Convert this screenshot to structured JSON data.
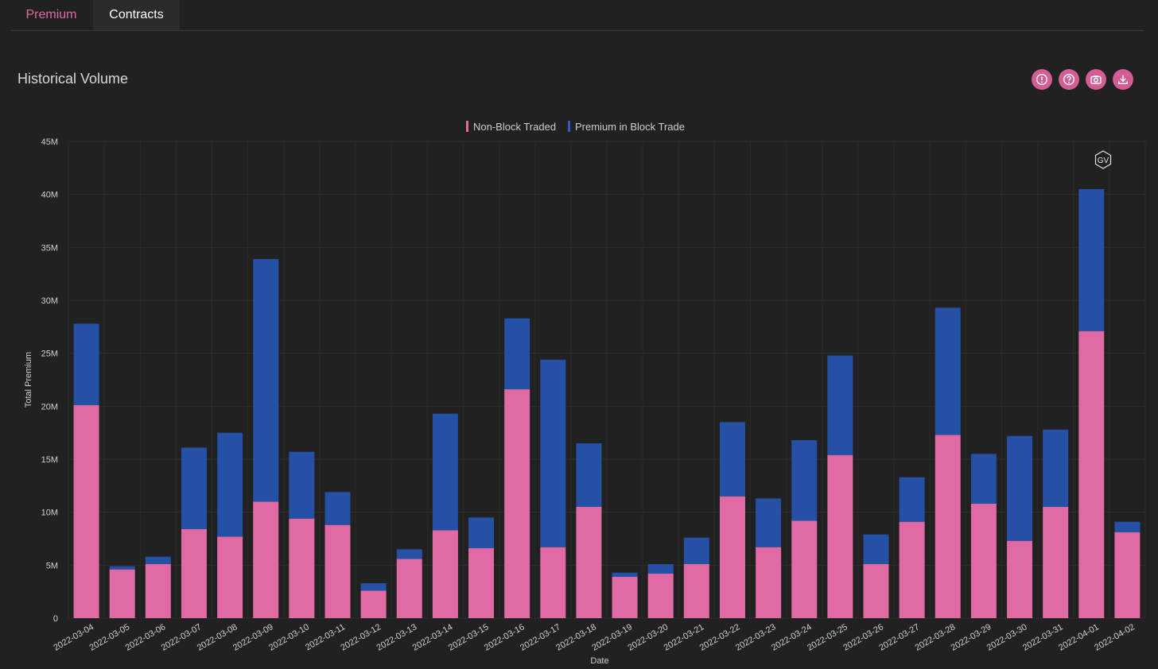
{
  "tabs": [
    {
      "label": "Premium",
      "active": true
    },
    {
      "label": "Contracts",
      "active": false
    }
  ],
  "panel": {
    "title": "Historical Volume",
    "icons": [
      "info-icon",
      "help-icon",
      "camera-icon",
      "download-icon"
    ]
  },
  "colors": {
    "non_block": "#e06aa3",
    "block": "#2450a6",
    "accent": "#d45d96"
  },
  "watermark": "GV",
  "chart_data": {
    "type": "bar",
    "stacked": true,
    "xlabel": "Date",
    "ylabel": "Total Premium",
    "ylim": [
      0,
      45000000
    ],
    "yticks": [
      "0",
      "5M",
      "10M",
      "15M",
      "20M",
      "25M",
      "30M",
      "35M",
      "40M",
      "45M"
    ],
    "legend_position": "top-center",
    "grid": true,
    "categories": [
      "2022-03-04",
      "2022-03-05",
      "2022-03-06",
      "2022-03-07",
      "2022-03-08",
      "2022-03-09",
      "2022-03-10",
      "2022-03-11",
      "2022-03-12",
      "2022-03-13",
      "2022-03-14",
      "2022-03-15",
      "2022-03-16",
      "2022-03-17",
      "2022-03-18",
      "2022-03-19",
      "2022-03-20",
      "2022-03-21",
      "2022-03-22",
      "2022-03-23",
      "2022-03-24",
      "2022-03-25",
      "2022-03-26",
      "2022-03-27",
      "2022-03-28",
      "2022-03-29",
      "2022-03-30",
      "2022-03-31",
      "2022-04-01",
      "2022-04-02"
    ],
    "series": [
      {
        "name": "Non-Block Traded",
        "values": [
          20.1,
          4.6,
          5.1,
          8.4,
          7.7,
          11.0,
          9.4,
          8.8,
          2.6,
          5.6,
          8.3,
          6.6,
          21.6,
          6.7,
          10.5,
          3.9,
          4.2,
          5.1,
          11.5,
          6.7,
          9.2,
          15.4,
          5.1,
          9.1,
          17.3,
          10.8,
          7.3,
          10.5,
          27.1,
          8.1
        ]
      },
      {
        "name": "Premium in Block Trade",
        "values": [
          7.7,
          0.3,
          0.7,
          7.7,
          9.8,
          22.9,
          6.3,
          3.1,
          0.7,
          0.9,
          11.0,
          2.9,
          6.7,
          17.7,
          6.0,
          0.4,
          0.9,
          2.5,
          7.0,
          4.6,
          7.6,
          9.4,
          2.8,
          4.2,
          12.0,
          4.7,
          9.9,
          7.3,
          13.4,
          1.0
        ]
      }
    ],
    "units_multiplier": 1000000
  }
}
